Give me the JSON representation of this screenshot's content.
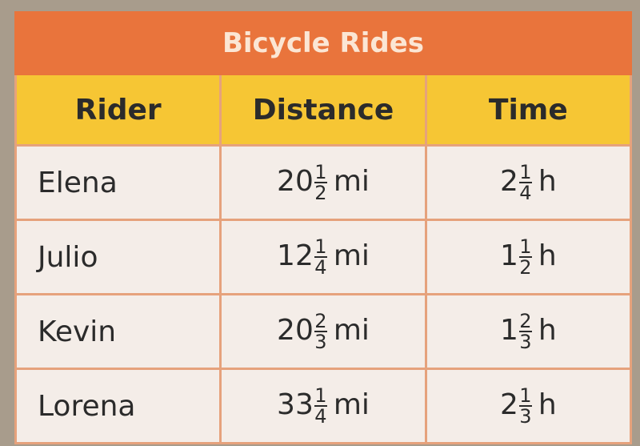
{
  "table": {
    "title": "Bicycle Rides",
    "headers": [
      "Rider",
      "Distance",
      "Time"
    ],
    "rows": [
      {
        "rider": "Elena",
        "distance": {
          "whole": "20",
          "numerator": "1",
          "denominator": "2",
          "unit": "mi"
        },
        "time": {
          "whole": "2",
          "numerator": "1",
          "denominator": "4",
          "unit": "h"
        }
      },
      {
        "rider": "Julio",
        "distance": {
          "whole": "12",
          "numerator": "1",
          "denominator": "4",
          "unit": "mi"
        },
        "time": {
          "whole": "1",
          "numerator": "1",
          "denominator": "2",
          "unit": "h"
        }
      },
      {
        "rider": "Kevin",
        "distance": {
          "whole": "20",
          "numerator": "2",
          "denominator": "3",
          "unit": "mi"
        },
        "time": {
          "whole": "1",
          "numerator": "2",
          "denominator": "3",
          "unit": "h"
        }
      },
      {
        "rider": "Lorena",
        "distance": {
          "whole": "33",
          "numerator": "1",
          "denominator": "4",
          "unit": "mi"
        },
        "time": {
          "whole": "2",
          "numerator": "1",
          "denominator": "3",
          "unit": "h"
        }
      }
    ]
  }
}
